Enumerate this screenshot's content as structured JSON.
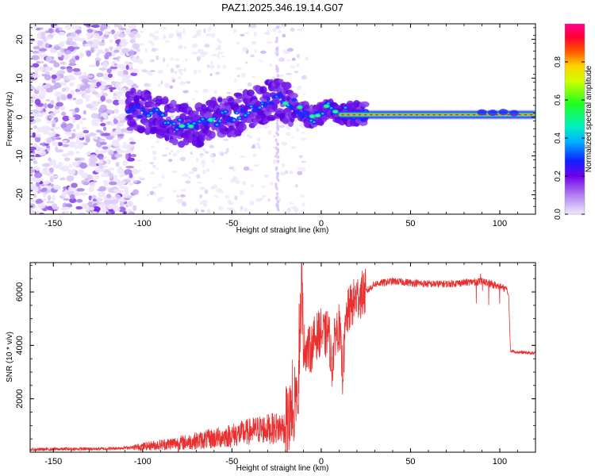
{
  "title": "PAZ1.2025.346.19.14.G07",
  "chart_data": [
    {
      "type": "heatmap",
      "name": "spectrogram",
      "xlabel": "Height of straight line (km)",
      "ylabel": "Frequency (Hz)",
      "xlim": [
        -163,
        120
      ],
      "ylim": [
        -25,
        24
      ],
      "xticks": [
        -150,
        -100,
        -50,
        0,
        50,
        100
      ],
      "yticks": [
        -20,
        -10,
        0,
        10,
        20
      ],
      "colorbar": {
        "label": "Normalized spectral amplitude",
        "range": [
          0,
          1
        ],
        "ticks": [
          "0.0",
          "0.2",
          "0.4",
          "0.6",
          "0.8"
        ],
        "colors": [
          "#e8e0f8",
          "#c8a8f0",
          "#9040e8",
          "#5000e0",
          "#1010ff",
          "#00a0ff",
          "#00e8d0",
          "#00ff40",
          "#c0ff00",
          "#ffe000",
          "#ff6000",
          "#ff0020",
          "#ff0090"
        ]
      },
      "ridge": [
        {
          "x": -108,
          "y": 2
        },
        {
          "x": -95,
          "y": 1
        },
        {
          "x": -80,
          "y": -2
        },
        {
          "x": -68,
          "y": -2
        },
        {
          "x": -55,
          "y": 0
        },
        {
          "x": -45,
          "y": 1
        },
        {
          "x": -35,
          "y": 3
        },
        {
          "x": -25,
          "y": 5
        },
        {
          "x": -15,
          "y": 3
        },
        {
          "x": -10,
          "y": 1
        },
        {
          "x": -5,
          "y": 0
        },
        {
          "x": 0,
          "y": 1
        },
        {
          "x": 5,
          "y": 3
        },
        {
          "x": 10,
          "y": 1
        },
        {
          "x": 20,
          "y": 1
        },
        {
          "x": 30,
          "y": 0.5
        },
        {
          "x": 60,
          "y": 0.5
        },
        {
          "x": 90,
          "y": 0.5
        },
        {
          "x": 100,
          "y": 1
        },
        {
          "x": 120,
          "y": 0.5
        }
      ]
    },
    {
      "type": "line",
      "name": "snr",
      "xlabel": "Height of straight line (km)",
      "ylabel": "SNR (10 * v/v)",
      "xlim": [
        -163,
        120
      ],
      "ylim": [
        0,
        7100
      ],
      "xticks": [
        -150,
        -100,
        -50,
        0,
        50,
        100
      ],
      "yticks": [
        2000,
        4000,
        6000
      ],
      "color": "#e83030",
      "series": [
        {
          "name": "SNR",
          "x": [
            -163,
            -140,
            -120,
            -105,
            -90,
            -75,
            -60,
            -45,
            -35,
            -25,
            -20,
            -16,
            -13,
            -11,
            -10,
            -8,
            -6,
            -4,
            -2,
            0,
            2,
            4,
            6,
            8,
            10,
            12,
            14,
            16,
            18,
            20,
            25,
            30,
            35,
            40,
            50,
            60,
            70,
            80,
            90,
            95,
            100,
            104,
            105,
            106,
            110,
            120
          ],
          "y": [
            100,
            120,
            130,
            180,
            280,
            380,
            520,
            700,
            850,
            900,
            950,
            1200,
            2500,
            6800,
            4000,
            3900,
            3800,
            4200,
            4400,
            4500,
            4300,
            4600,
            3200,
            4500,
            4700,
            3000,
            5000,
            5400,
            5600,
            5800,
            6000,
            6300,
            6350,
            6400,
            6350,
            6300,
            6300,
            6350,
            6400,
            6300,
            6200,
            6100,
            5800,
            3800,
            3750,
            3700
          ]
        }
      ]
    }
  ]
}
